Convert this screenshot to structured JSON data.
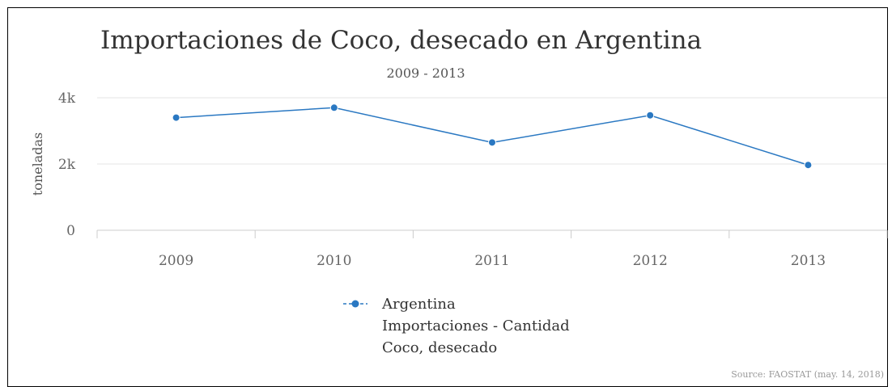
{
  "chart_data": {
    "type": "line",
    "title": "Importaciones de Coco, desecado en Argentina",
    "subtitle": "2009 - 2013",
    "ylabel": "toneladas",
    "xlabel": "",
    "categories": [
      "2009",
      "2010",
      "2011",
      "2012",
      "2013"
    ],
    "ylim": [
      0,
      4000
    ],
    "yticks": [
      {
        "value": 0,
        "label": "0"
      },
      {
        "value": 2000,
        "label": "2k"
      },
      {
        "value": 4000,
        "label": "4k"
      }
    ],
    "series": [
      {
        "legend_lines": [
          "Argentina",
          "Importaciones - Cantidad",
          "Coco, desecado"
        ],
        "color": "#2a78c2",
        "values": [
          3400,
          3700,
          2650,
          3470,
          1970
        ]
      }
    ],
    "grid": true,
    "legend_position": "bottom-center",
    "source": "Source: FAOSTAT (may. 14, 2018)"
  }
}
